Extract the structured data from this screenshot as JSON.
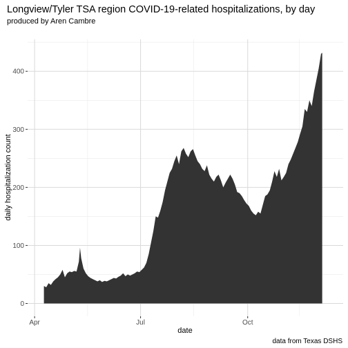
{
  "chart_data": {
    "type": "area",
    "title": "Longview/Tyler TSA region COVID-19-related hospitalizations, by day",
    "subtitle": "produced by Aren Cambre",
    "caption": "data from Texas DSHS",
    "xlabel": "date",
    "ylabel": "daily hospitalization count",
    "x_ticks": [
      "Apr",
      "Jul",
      "Oct"
    ],
    "y_ticks": [
      0,
      100,
      200,
      300,
      400
    ],
    "xlim": [
      "2020-03-26",
      "2020-12-22"
    ],
    "ylim": [
      -22,
      455
    ],
    "grid": true,
    "fill_color": "#333333",
    "series": [
      {
        "points": [
          [
            "2020-04-09",
            30
          ],
          [
            "2020-04-11",
            28
          ],
          [
            "2020-04-13",
            35
          ],
          [
            "2020-04-15",
            32
          ],
          [
            "2020-04-17",
            38
          ],
          [
            "2020-04-19",
            42
          ],
          [
            "2020-04-21",
            45
          ],
          [
            "2020-04-23",
            50
          ],
          [
            "2020-04-25",
            58
          ],
          [
            "2020-04-27",
            45
          ],
          [
            "2020-04-29",
            52
          ],
          [
            "2020-05-01",
            55
          ],
          [
            "2020-05-03",
            54
          ],
          [
            "2020-05-05",
            56
          ],
          [
            "2020-05-07",
            55
          ],
          [
            "2020-05-09",
            72
          ],
          [
            "2020-05-10",
            96
          ],
          [
            "2020-05-11",
            78
          ],
          [
            "2020-05-13",
            60
          ],
          [
            "2020-05-15",
            52
          ],
          [
            "2020-05-17",
            47
          ],
          [
            "2020-05-19",
            44
          ],
          [
            "2020-05-21",
            42
          ],
          [
            "2020-05-23",
            40
          ],
          [
            "2020-05-25",
            38
          ],
          [
            "2020-05-27",
            40
          ],
          [
            "2020-05-29",
            37
          ],
          [
            "2020-05-31",
            39
          ],
          [
            "2020-06-02",
            38
          ],
          [
            "2020-06-04",
            40
          ],
          [
            "2020-06-06",
            42
          ],
          [
            "2020-06-08",
            44
          ],
          [
            "2020-06-10",
            43
          ],
          [
            "2020-06-12",
            46
          ],
          [
            "2020-06-14",
            48
          ],
          [
            "2020-06-16",
            52
          ],
          [
            "2020-06-18",
            47
          ],
          [
            "2020-06-20",
            50
          ],
          [
            "2020-06-22",
            48
          ],
          [
            "2020-06-24",
            50
          ],
          [
            "2020-06-26",
            52
          ],
          [
            "2020-06-28",
            55
          ],
          [
            "2020-06-30",
            54
          ],
          [
            "2020-07-02",
            58
          ],
          [
            "2020-07-04",
            62
          ],
          [
            "2020-07-06",
            70
          ],
          [
            "2020-07-08",
            85
          ],
          [
            "2020-07-10",
            105
          ],
          [
            "2020-07-12",
            125
          ],
          [
            "2020-07-14",
            150
          ],
          [
            "2020-07-16",
            148
          ],
          [
            "2020-07-18",
            160
          ],
          [
            "2020-07-20",
            175
          ],
          [
            "2020-07-22",
            195
          ],
          [
            "2020-07-24",
            210
          ],
          [
            "2020-07-26",
            225
          ],
          [
            "2020-07-28",
            232
          ],
          [
            "2020-07-30",
            245
          ],
          [
            "2020-08-01",
            255
          ],
          [
            "2020-08-03",
            240
          ],
          [
            "2020-08-05",
            262
          ],
          [
            "2020-08-07",
            268
          ],
          [
            "2020-08-09",
            258
          ],
          [
            "2020-08-11",
            252
          ],
          [
            "2020-08-13",
            262
          ],
          [
            "2020-08-15",
            266
          ],
          [
            "2020-08-17",
            255
          ],
          [
            "2020-08-19",
            245
          ],
          [
            "2020-08-21",
            240
          ],
          [
            "2020-08-23",
            232
          ],
          [
            "2020-08-25",
            228
          ],
          [
            "2020-08-27",
            238
          ],
          [
            "2020-08-29",
            222
          ],
          [
            "2020-08-31",
            215
          ],
          [
            "2020-09-02",
            210
          ],
          [
            "2020-09-04",
            218
          ],
          [
            "2020-09-06",
            222
          ],
          [
            "2020-09-08",
            212
          ],
          [
            "2020-09-10",
            200
          ],
          [
            "2020-09-12",
            208
          ],
          [
            "2020-09-14",
            215
          ],
          [
            "2020-09-16",
            222
          ],
          [
            "2020-09-18",
            215
          ],
          [
            "2020-09-20",
            205
          ],
          [
            "2020-09-22",
            192
          ],
          [
            "2020-09-24",
            190
          ],
          [
            "2020-09-26",
            185
          ],
          [
            "2020-09-28",
            178
          ],
          [
            "2020-09-30",
            172
          ],
          [
            "2020-10-02",
            168
          ],
          [
            "2020-10-04",
            160
          ],
          [
            "2020-10-06",
            155
          ],
          [
            "2020-10-08",
            152
          ],
          [
            "2020-10-10",
            158
          ],
          [
            "2020-10-12",
            155
          ],
          [
            "2020-10-14",
            170
          ],
          [
            "2020-10-16",
            185
          ],
          [
            "2020-10-18",
            188
          ],
          [
            "2020-10-20",
            195
          ],
          [
            "2020-10-22",
            210
          ],
          [
            "2020-10-24",
            228
          ],
          [
            "2020-10-26",
            218
          ],
          [
            "2020-10-28",
            232
          ],
          [
            "2020-10-30",
            212
          ],
          [
            "2020-11-01",
            218
          ],
          [
            "2020-11-03",
            225
          ],
          [
            "2020-11-05",
            240
          ],
          [
            "2020-11-07",
            248
          ],
          [
            "2020-11-09",
            258
          ],
          [
            "2020-11-11",
            268
          ],
          [
            "2020-11-13",
            278
          ],
          [
            "2020-11-15",
            292
          ],
          [
            "2020-11-17",
            305
          ],
          [
            "2020-11-19",
            335
          ],
          [
            "2020-11-21",
            330
          ],
          [
            "2020-11-23",
            350
          ],
          [
            "2020-11-25",
            340
          ],
          [
            "2020-11-27",
            365
          ],
          [
            "2020-11-29",
            385
          ],
          [
            "2020-12-01",
            405
          ],
          [
            "2020-12-03",
            430
          ],
          [
            "2020-12-04",
            432
          ]
        ]
      }
    ]
  }
}
